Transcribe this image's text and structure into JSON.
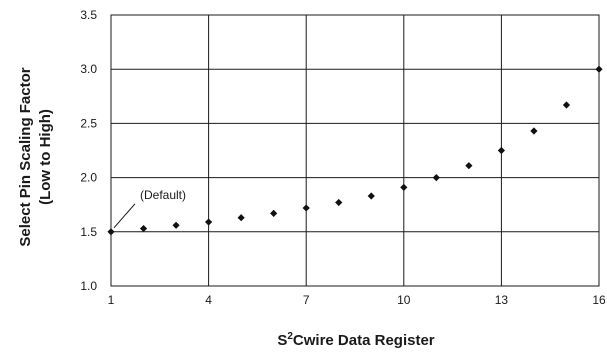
{
  "chart_data": {
    "type": "scatter",
    "title": "",
    "xlabel": "Cwire Data Register",
    "xlabel_prefix": "S",
    "xlabel_superscript": "2",
    "ylabel_lines": [
      "Select Pin Scaling Factor",
      "(Low to High)"
    ],
    "xlim": [
      1,
      16
    ],
    "ylim": [
      1.0,
      3.5
    ],
    "xticks": [
      1,
      4,
      7,
      10,
      13,
      16
    ],
    "yticks": [
      "1.0",
      "1.5",
      "2.0",
      "2.5",
      "3.0",
      "3.5"
    ],
    "grid": true,
    "marker_color": "#111111",
    "marker": "diamond",
    "annotation": {
      "text": "(Default)",
      "x": 1,
      "y": 1.5
    },
    "x": [
      1,
      2,
      3,
      4,
      5,
      6,
      7,
      8,
      9,
      10,
      11,
      12,
      13,
      14,
      15,
      16
    ],
    "y": [
      1.5,
      1.53,
      1.56,
      1.59,
      1.63,
      1.67,
      1.72,
      1.77,
      1.83,
      1.91,
      2.0,
      2.11,
      2.25,
      2.43,
      2.67,
      3.0
    ]
  }
}
